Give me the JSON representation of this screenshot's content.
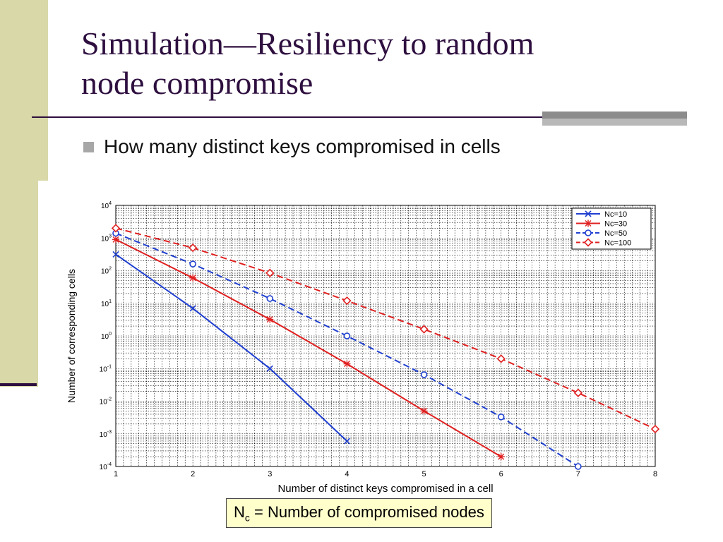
{
  "slide": {
    "title_line1": "Simulation—Resiliency to random",
    "title_line2": "node compromise",
    "bullet": "How many distinct keys compromised in cells",
    "caption": {
      "symbol": "N",
      "subscript": "c",
      "text": " = Number of compromised nodes"
    }
  },
  "colors": {
    "title": "#2e0f3f",
    "left_band": "#d8d8a8",
    "caption_bg": "#ffffcc"
  },
  "chart_data": {
    "type": "line",
    "xlabel": "Number of distinct keys compromised in a cell",
    "ylabel": "Number of corresponding cells",
    "xlim": [
      1,
      8
    ],
    "ylim_exp": [
      -4,
      4
    ],
    "yscale": "log",
    "x_ticks": [
      "1",
      "2",
      "3",
      "4",
      "5",
      "6",
      "7",
      "8"
    ],
    "y_tick_base": "10",
    "y_tick_exponents": [
      "-4",
      "-3",
      "-2",
      "-1",
      "0",
      "1",
      "2",
      "3",
      "4"
    ],
    "grid": true,
    "legend_position": "top-right",
    "series": [
      {
        "name": "Nc=10",
        "color": "#1f3fd0",
        "dashed": false,
        "marker": "x",
        "x": [
          1,
          2,
          3,
          4
        ],
        "y": [
          316,
          7,
          0.1,
          0.0006
        ]
      },
      {
        "name": "Nc=30",
        "color": "#e02020",
        "dashed": false,
        "marker": "star",
        "x": [
          1,
          2,
          3,
          4,
          5,
          6
        ],
        "y": [
          900,
          60,
          3.2,
          0.14,
          0.005,
          0.0002
        ]
      },
      {
        "name": "Nc=50",
        "color": "#1f3fd0",
        "dashed": true,
        "marker": "circle",
        "x": [
          1,
          2,
          3,
          4,
          5,
          6,
          7
        ],
        "y": [
          1400,
          160,
          14,
          1,
          0.065,
          0.0033,
          0.0001
        ]
      },
      {
        "name": "Nc=100",
        "color": "#e02020",
        "dashed": true,
        "marker": "diamond",
        "x": [
          1,
          2,
          3,
          4,
          5,
          6,
          7,
          8
        ],
        "y": [
          2000,
          500,
          85,
          12,
          1.6,
          0.2,
          0.018,
          0.0014
        ]
      }
    ]
  }
}
